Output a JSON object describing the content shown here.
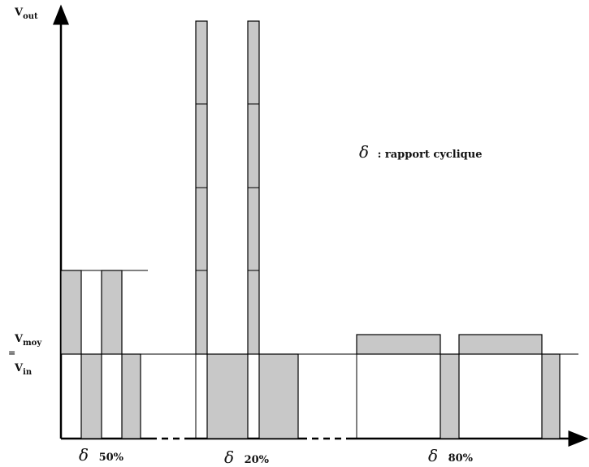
{
  "labels": {
    "vout": "V",
    "vout_sub": "out",
    "vmoy": "V",
    "vmoy_sub": "moy",
    "eq": "=",
    "vin": "V",
    "vin_sub": "in",
    "delta_symbol": "δ",
    "legend_text": ": rapport cyclique",
    "duty_50": "50%",
    "duty_20": "20%",
    "duty_80": "80%"
  },
  "colors": {
    "fill": "#c8c8c8",
    "line": "#000000"
  }
}
